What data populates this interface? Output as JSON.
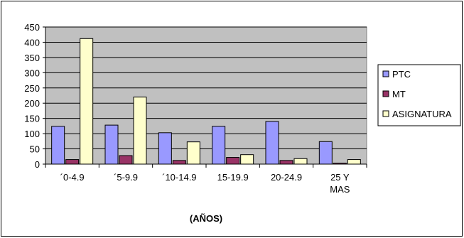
{
  "chart_data": {
    "type": "bar",
    "title": "",
    "xlabel": "(AÑOS)",
    "ylabel": "",
    "categories": [
      [
        "´0-4.9"
      ],
      [
        "´5-9.9"
      ],
      [
        "´10-14.9"
      ],
      [
        "15-19.9"
      ],
      [
        "20-24.9"
      ],
      [
        "25 Y",
        "MAS"
      ]
    ],
    "series": [
      {
        "name": "PTC",
        "values": [
          124,
          128,
          103,
          124,
          140,
          74
        ],
        "color": "#9999FF"
      },
      {
        "name": "MT",
        "values": [
          15,
          28,
          12,
          22,
          12,
          3
        ],
        "color": "#993366"
      },
      {
        "name": "ASIGNATURA",
        "values": [
          412,
          220,
          73,
          31,
          18,
          15
        ],
        "color": "#FFFFCC"
      }
    ],
    "ylim": [
      0,
      450
    ],
    "yticks": [
      0,
      50,
      100,
      150,
      200,
      250,
      300,
      350,
      400,
      450
    ],
    "grid": true,
    "legend": "right",
    "plot_background": "#C0C0C0"
  }
}
